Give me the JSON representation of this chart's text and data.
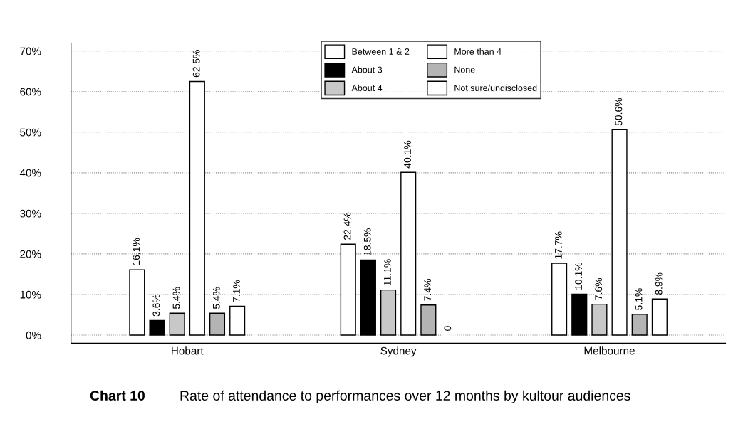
{
  "chart_data": {
    "type": "bar",
    "title": "Chart 10",
    "subtitle": "Rate of attendance to performances over 12 months by kultour audiences",
    "categories": [
      "Hobart",
      "Sydney",
      "Melbourne"
    ],
    "series": [
      {
        "name": "Between 1 & 2",
        "color": "#ffffff",
        "values": [
          16.1,
          22.4,
          17.7
        ],
        "value_labels": [
          "16.1%",
          "22.4%",
          "17.7%"
        ]
      },
      {
        "name": "About 3",
        "color": "#000000",
        "values": [
          3.6,
          18.5,
          10.1
        ],
        "value_labels": [
          "3.6%",
          "18.5%",
          "10.1%"
        ]
      },
      {
        "name": "About 4",
        "color": "#c8c8c8",
        "values": [
          5.4,
          11.1,
          7.6
        ],
        "value_labels": [
          "5.4%",
          "11.1%",
          "7.6%"
        ]
      },
      {
        "name": "More than 4",
        "color": "#ffffff",
        "values": [
          62.5,
          40.1,
          50.6
        ],
        "value_labels": [
          "62.5%",
          "40.1%",
          "50.6%"
        ]
      },
      {
        "name": "None",
        "color": "#b4b4b4",
        "values": [
          5.4,
          7.4,
          5.1
        ],
        "value_labels": [
          "5.4%",
          "7.4%",
          "5.1%"
        ]
      },
      {
        "name": "Not sure/undisclosed",
        "color": "#ffffff",
        "values": [
          7.1,
          0,
          8.9
        ],
        "value_labels": [
          "7.1%",
          "0",
          "8.9%"
        ]
      }
    ],
    "ylim": [
      -2,
      72
    ],
    "yticks": [
      {
        "value": 0,
        "label": "0%"
      },
      {
        "value": 10,
        "label": "10%"
      },
      {
        "value": 20,
        "label": "20%"
      },
      {
        "value": 30,
        "label": "30%"
      },
      {
        "value": 40,
        "label": "40%"
      },
      {
        "value": 50,
        "label": "50%"
      },
      {
        "value": 60,
        "label": "60%"
      },
      {
        "value": 70,
        "label": "70%"
      }
    ],
    "grid": "y",
    "legend": "top"
  }
}
